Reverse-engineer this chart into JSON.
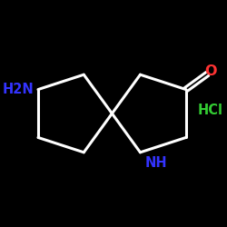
{
  "background_color": "#000000",
  "bond_color": "#ffffff",
  "bond_width": 2.2,
  "O_color": "#ff3333",
  "NH_color": "#3333ff",
  "HCl_color": "#33cc33",
  "NH2_color": "#3333ff",
  "label_O": "O",
  "label_NH": "NH",
  "label_NH2": "H2N",
  "label_HCl": "HCl",
  "figsize": [
    2.5,
    2.5
  ],
  "dpi": 100
}
